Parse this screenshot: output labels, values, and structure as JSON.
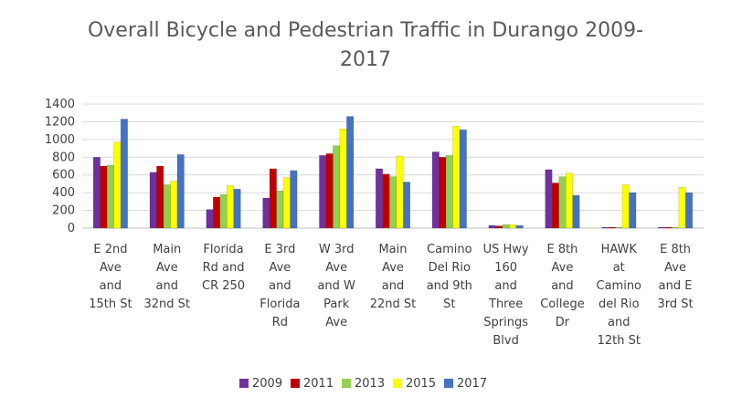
{
  "chart_data": {
    "type": "bar",
    "title_lines": [
      "Overall Bicycle and Pedestrian Traffic in Durango 2009-",
      "2017"
    ],
    "xlabel": "",
    "ylabel": "",
    "ylim": [
      0,
      1400
    ],
    "yticks": [
      0,
      200,
      400,
      600,
      800,
      1000,
      1200,
      1400
    ],
    "grid": true,
    "legend": "bottom",
    "categories": [
      [
        "E 2nd",
        "Ave",
        "and",
        "15th St"
      ],
      [
        "Main",
        "Ave",
        "and",
        "32nd St"
      ],
      [
        "Florida",
        "Rd and",
        "CR 250"
      ],
      [
        "E 3rd",
        "Ave",
        "and",
        "Florida",
        "Rd"
      ],
      [
        "W 3rd",
        "Ave",
        "and W",
        "Park",
        "Ave"
      ],
      [
        "Main",
        "Ave",
        "and",
        "22nd St"
      ],
      [
        "Camino",
        "Del Rio",
        "and 9th",
        "St"
      ],
      [
        "US Hwy",
        "160",
        "and",
        "Three",
        "Springs",
        "Blvd"
      ],
      [
        "E 8th",
        "Ave",
        "and",
        "College",
        "Dr"
      ],
      [
        "HAWK",
        "at",
        "Camino",
        "del Rio",
        "and",
        "12th St"
      ],
      [
        "E 8th",
        "Ave",
        "and E",
        "3rd St"
      ]
    ],
    "series": [
      {
        "name": "2009",
        "color": "#7030A0",
        "values": [
          800,
          630,
          210,
          340,
          820,
          670,
          860,
          30,
          660,
          10,
          10
        ]
      },
      {
        "name": "2011",
        "color": "#C00000",
        "values": [
          700,
          700,
          350,
          670,
          840,
          610,
          800,
          25,
          510,
          10,
          10
        ]
      },
      {
        "name": "2013",
        "color": "#92D050",
        "values": [
          710,
          490,
          380,
          420,
          930,
          580,
          820,
          40,
          580,
          10,
          10
        ]
      },
      {
        "name": "2015",
        "color": "#FFFF00",
        "values": [
          970,
          530,
          480,
          570,
          1120,
          810,
          1150,
          40,
          620,
          490,
          460
        ]
      },
      {
        "name": "2017",
        "color": "#4472C4",
        "values": [
          1230,
          830,
          440,
          650,
          1260,
          520,
          1110,
          30,
          370,
          400,
          400
        ]
      }
    ]
  }
}
